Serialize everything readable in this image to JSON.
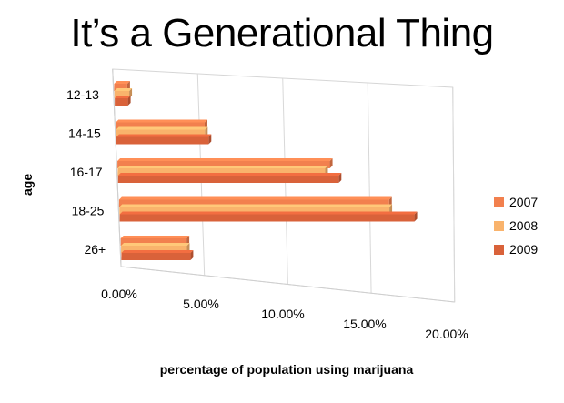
{
  "chart_data": {
    "type": "bar",
    "orientation": "horizontal",
    "three_d": true,
    "title": "It’s a Generational Thing",
    "xlabel": "percentage of population using marijuana",
    "ylabel": "age",
    "categories": [
      "12-13",
      "14-15",
      "16-17",
      "18-25",
      "26+"
    ],
    "series": [
      {
        "name": "2007",
        "color": "#F2804E",
        "values": [
          0.8,
          5.4,
          12.9,
          16.4,
          4.0
        ]
      },
      {
        "name": "2008",
        "color": "#F9B36C",
        "values": [
          0.9,
          5.4,
          12.6,
          16.4,
          4.0
        ]
      },
      {
        "name": "2009",
        "color": "#D9623A",
        "values": [
          0.8,
          5.6,
          13.4,
          17.9,
          4.2
        ]
      }
    ],
    "xlim": [
      0,
      20
    ],
    "x_ticks": [
      "0.00%",
      "5.00%",
      "10.00%",
      "15.00%",
      "20.00%"
    ],
    "grid": true,
    "legend_position": "right"
  }
}
